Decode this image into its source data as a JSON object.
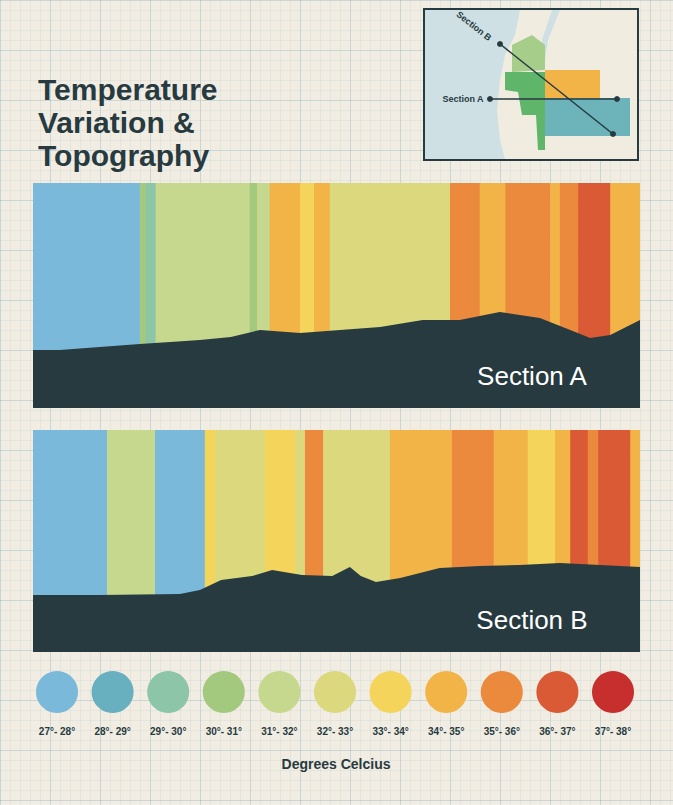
{
  "title": "Temperature Variation & Topography",
  "inset_map": {
    "labels": [
      "Section B",
      "Section A"
    ]
  },
  "color_scale": {
    "title": "Degrees Celcius",
    "bins": [
      27,
      28,
      29,
      30,
      31,
      32,
      33,
      34,
      35,
      36,
      37,
      38
    ],
    "labels": [
      "27°- 28°",
      "28°- 29°",
      "29°- 30°",
      "30°- 31°",
      "31°- 32°",
      "32°- 33°",
      "33°- 34°",
      "34°- 35°",
      "35°- 36°",
      "36°- 37°",
      "37°- 38°"
    ],
    "colors": [
      "#7ab9d9",
      "#68afc0",
      "#8cc5a8",
      "#a3c97e",
      "#c6d88e",
      "#dcd87e",
      "#f5d45c",
      "#f2b447",
      "#eb8a3c",
      "#d95a34",
      "#c62f2d"
    ]
  },
  "chart_data": [
    {
      "type": "strip",
      "label": "Section A",
      "xlim": [
        0,
        100
      ],
      "ylim": [
        0,
        100
      ],
      "tick_labels": false,
      "bins": [
        0,
        17.6,
        18.6,
        20.2,
        35.7,
        36.9,
        39.0,
        44.0,
        46.3,
        48.9,
        68.7,
        73.6,
        77.8,
        85.2,
        86.8,
        89.8,
        95.1,
        100
      ],
      "values": [
        27.5,
        30.5,
        29.5,
        31.5,
        30.5,
        31.5,
        34.5,
        33.5,
        34.5,
        32.5,
        35.5,
        34.5,
        35.5,
        34.5,
        35.5,
        36.5,
        34.5
      ],
      "elevation_x": [
        0,
        4.4,
        11.0,
        17.6,
        22.6,
        27.5,
        32.6,
        37.4,
        44.0,
        50.6,
        57.2,
        64.2,
        70.3,
        76.9,
        83.5,
        88.5,
        91.8,
        95.1,
        100
      ],
      "elevation": [
        25.8,
        25.8,
        27.1,
        28.4,
        29.3,
        30.2,
        31.6,
        34.7,
        33.3,
        34.7,
        36.0,
        39.1,
        39.1,
        42.7,
        40.0,
        34.7,
        31.1,
        32.4,
        39.1
      ]
    },
    {
      "type": "strip",
      "label": "Section B",
      "xlim": [
        0,
        100
      ],
      "ylim": [
        0,
        100
      ],
      "tick_labels": false,
      "bins": [
        0,
        12.2,
        20.1,
        28.3,
        30.0,
        38.2,
        43.2,
        44.8,
        47.8,
        58.8,
        69.0,
        75.9,
        81.5,
        86.0,
        88.5,
        91.4,
        93.1,
        98.4,
        100
      ],
      "values": [
        27.5,
        31.5,
        27.5,
        33.5,
        32.5,
        33.5,
        32.5,
        35.5,
        32.5,
        34.5,
        35.5,
        34.5,
        33.5,
        34.5,
        36.5,
        35.5,
        36.5,
        34.5
      ],
      "elevation_x": [
        0,
        11.0,
        24.2,
        27.5,
        31.0,
        36.1,
        39.4,
        44.3,
        49.3,
        52.2,
        54.0,
        56.5,
        60.5,
        67.0,
        73.6,
        80.2,
        86.8,
        93.4,
        100
      ],
      "elevation": [
        25.7,
        25.7,
        26.1,
        27.9,
        32.4,
        34.2,
        36.9,
        34.7,
        34.2,
        38.3,
        34.2,
        31.5,
        33.3,
        37.8,
        38.7,
        39.2,
        40.1,
        39.2,
        38.3
      ]
    }
  ]
}
